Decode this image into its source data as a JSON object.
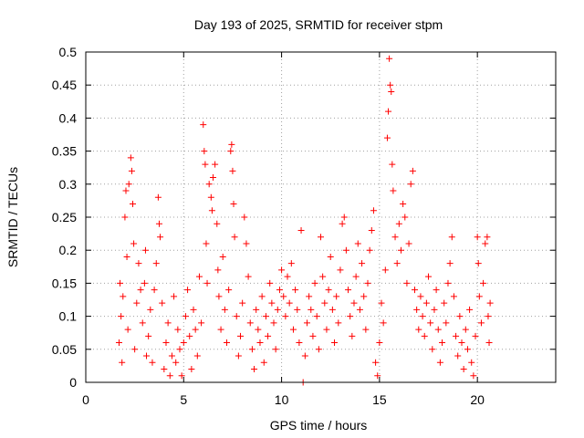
{
  "chart_data": {
    "type": "scatter",
    "title": "Day 193 of 2025, SRMTID for receiver stpm",
    "xlabel": "GPS time / hours",
    "ylabel": "SRMTID / TECUs",
    "xlim": [
      0,
      24
    ],
    "ylim": [
      0,
      0.5
    ],
    "x_ticks": [
      0,
      5,
      10,
      15,
      20
    ],
    "y_ticks": [
      0,
      0.05,
      0.1,
      0.15,
      0.2,
      0.25,
      0.3,
      0.35,
      0.4,
      0.45,
      0.5
    ],
    "x_tick_labels": [
      "0",
      "5",
      "10",
      "15",
      "20"
    ],
    "y_tick_labels": [
      "0",
      "0.05",
      "0.1",
      "0.15",
      "0.2",
      "0.25",
      "0.3",
      "0.35",
      "0.4",
      "0.45",
      "0.5"
    ],
    "grid": true,
    "marker": "plus",
    "series_color": "#ff0000",
    "series": [
      {
        "name": "SRMTID",
        "points": [
          [
            1.7,
            0.06
          ],
          [
            1.75,
            0.15
          ],
          [
            1.8,
            0.1
          ],
          [
            1.85,
            0.03
          ],
          [
            1.9,
            0.13
          ],
          [
            2.0,
            0.25
          ],
          [
            2.05,
            0.29
          ],
          [
            2.1,
            0.19
          ],
          [
            2.15,
            0.08
          ],
          [
            2.2,
            0.3
          ],
          [
            2.3,
            0.34
          ],
          [
            2.35,
            0.32
          ],
          [
            2.4,
            0.27
          ],
          [
            2.45,
            0.21
          ],
          [
            2.5,
            0.05
          ],
          [
            2.6,
            0.12
          ],
          [
            2.7,
            0.18
          ],
          [
            2.8,
            0.14
          ],
          [
            2.9,
            0.09
          ],
          [
            3.0,
            0.15
          ],
          [
            3.05,
            0.2
          ],
          [
            3.1,
            0.04
          ],
          [
            3.2,
            0.07
          ],
          [
            3.3,
            0.11
          ],
          [
            3.4,
            0.03
          ],
          [
            3.5,
            0.14
          ],
          [
            3.6,
            0.18
          ],
          [
            3.7,
            0.28
          ],
          [
            3.75,
            0.24
          ],
          [
            3.8,
            0.22
          ],
          [
            3.9,
            0.12
          ],
          [
            4.0,
            0.02
          ],
          [
            4.1,
            0.06
          ],
          [
            4.2,
            0.09
          ],
          [
            4.3,
            0.01
          ],
          [
            4.4,
            0.04
          ],
          [
            4.5,
            0.13
          ],
          [
            4.6,
            0.03
          ],
          [
            4.7,
            0.08
          ],
          [
            4.8,
            0.05
          ],
          [
            4.9,
            0.01
          ],
          [
            5.0,
            0.06
          ],
          [
            5.1,
            0.1
          ],
          [
            5.2,
            0.14
          ],
          [
            5.3,
            0.07
          ],
          [
            5.4,
            0.02
          ],
          [
            5.5,
            0.11
          ],
          [
            5.6,
            0.08
          ],
          [
            5.7,
            0.04
          ],
          [
            5.8,
            0.16
          ],
          [
            5.9,
            0.09
          ],
          [
            6.0,
            0.39
          ],
          [
            6.05,
            0.35
          ],
          [
            6.1,
            0.33
          ],
          [
            6.15,
            0.21
          ],
          [
            6.2,
            0.15
          ],
          [
            6.3,
            0.3
          ],
          [
            6.4,
            0.28
          ],
          [
            6.45,
            0.26
          ],
          [
            6.5,
            0.31
          ],
          [
            6.6,
            0.33
          ],
          [
            6.7,
            0.24
          ],
          [
            6.75,
            0.17
          ],
          [
            6.8,
            0.13
          ],
          [
            6.9,
            0.08
          ],
          [
            7.0,
            0.19
          ],
          [
            7.1,
            0.11
          ],
          [
            7.2,
            0.06
          ],
          [
            7.3,
            0.14
          ],
          [
            7.4,
            0.35
          ],
          [
            7.45,
            0.36
          ],
          [
            7.5,
            0.32
          ],
          [
            7.55,
            0.27
          ],
          [
            7.6,
            0.22
          ],
          [
            7.7,
            0.1
          ],
          [
            7.8,
            0.04
          ],
          [
            7.9,
            0.07
          ],
          [
            8.0,
            0.12
          ],
          [
            8.1,
            0.25
          ],
          [
            8.2,
            0.21
          ],
          [
            8.3,
            0.16
          ],
          [
            8.4,
            0.09
          ],
          [
            8.5,
            0.05
          ],
          [
            8.6,
            0.02
          ],
          [
            8.7,
            0.11
          ],
          [
            8.8,
            0.08
          ],
          [
            8.9,
            0.06
          ],
          [
            9.0,
            0.13
          ],
          [
            9.1,
            0.03
          ],
          [
            9.2,
            0.1
          ],
          [
            9.3,
            0.07
          ],
          [
            9.4,
            0.15
          ],
          [
            9.5,
            0.12
          ],
          [
            9.6,
            0.09
          ],
          [
            9.7,
            0.05
          ],
          [
            9.8,
            0.11
          ],
          [
            9.9,
            0.14
          ],
          [
            10.0,
            0.17
          ],
          [
            10.1,
            0.13
          ],
          [
            10.2,
            0.1
          ],
          [
            10.3,
            0.16
          ],
          [
            10.4,
            0.12
          ],
          [
            10.5,
            0.18
          ],
          [
            10.6,
            0.08
          ],
          [
            10.7,
            0.14
          ],
          [
            10.8,
            0.11
          ],
          [
            10.9,
            0.06
          ],
          [
            11.0,
            0.23
          ],
          [
            11.1,
            0.0
          ],
          [
            11.2,
            0.04
          ],
          [
            11.3,
            0.09
          ],
          [
            11.4,
            0.13
          ],
          [
            11.5,
            0.11
          ],
          [
            11.6,
            0.07
          ],
          [
            11.7,
            0.15
          ],
          [
            11.8,
            0.1
          ],
          [
            11.9,
            0.05
          ],
          [
            12.0,
            0.22
          ],
          [
            12.1,
            0.16
          ],
          [
            12.2,
            0.12
          ],
          [
            12.3,
            0.08
          ],
          [
            12.4,
            0.14
          ],
          [
            12.5,
            0.19
          ],
          [
            12.6,
            0.11
          ],
          [
            12.7,
            0.06
          ],
          [
            12.8,
            0.13
          ],
          [
            12.9,
            0.09
          ],
          [
            13.0,
            0.17
          ],
          [
            13.1,
            0.24
          ],
          [
            13.2,
            0.25
          ],
          [
            13.3,
            0.2
          ],
          [
            13.4,
            0.14
          ],
          [
            13.5,
            0.1
          ],
          [
            13.6,
            0.07
          ],
          [
            13.7,
            0.12
          ],
          [
            13.8,
            0.16
          ],
          [
            13.9,
            0.21
          ],
          [
            14.0,
            0.11
          ],
          [
            14.1,
            0.18
          ],
          [
            14.2,
            0.13
          ],
          [
            14.3,
            0.08
          ],
          [
            14.4,
            0.15
          ],
          [
            14.5,
            0.2
          ],
          [
            14.6,
            0.23
          ],
          [
            14.7,
            0.26
          ],
          [
            14.8,
            0.03
          ],
          [
            14.9,
            0.01
          ],
          [
            15.0,
            0.06
          ],
          [
            15.1,
            0.12
          ],
          [
            15.2,
            0.09
          ],
          [
            15.3,
            0.17
          ],
          [
            15.4,
            0.37
          ],
          [
            15.45,
            0.41
          ],
          [
            15.5,
            0.49
          ],
          [
            15.55,
            0.45
          ],
          [
            15.6,
            0.44
          ],
          [
            15.65,
            0.33
          ],
          [
            15.7,
            0.29
          ],
          [
            15.8,
            0.22
          ],
          [
            15.9,
            0.18
          ],
          [
            16.0,
            0.24
          ],
          [
            16.1,
            0.2
          ],
          [
            16.2,
            0.27
          ],
          [
            16.3,
            0.25
          ],
          [
            16.4,
            0.15
          ],
          [
            16.5,
            0.21
          ],
          [
            16.6,
            0.3
          ],
          [
            16.7,
            0.32
          ],
          [
            16.8,
            0.14
          ],
          [
            16.9,
            0.11
          ],
          [
            17.0,
            0.08
          ],
          [
            17.1,
            0.13
          ],
          [
            17.2,
            0.1
          ],
          [
            17.3,
            0.07
          ],
          [
            17.4,
            0.12
          ],
          [
            17.5,
            0.16
          ],
          [
            17.6,
            0.09
          ],
          [
            17.7,
            0.05
          ],
          [
            17.8,
            0.11
          ],
          [
            17.9,
            0.14
          ],
          [
            18.0,
            0.08
          ],
          [
            18.1,
            0.03
          ],
          [
            18.2,
            0.06
          ],
          [
            18.3,
            0.12
          ],
          [
            18.4,
            0.09
          ],
          [
            18.5,
            0.15
          ],
          [
            18.6,
            0.18
          ],
          [
            18.7,
            0.22
          ],
          [
            18.8,
            0.13
          ],
          [
            18.9,
            0.07
          ],
          [
            19.0,
            0.04
          ],
          [
            19.1,
            0.1
          ],
          [
            19.2,
            0.06
          ],
          [
            19.3,
            0.02
          ],
          [
            19.4,
            0.08
          ],
          [
            19.5,
            0.05
          ],
          [
            19.6,
            0.11
          ],
          [
            19.7,
            0.03
          ],
          [
            19.8,
            0.01
          ],
          [
            19.9,
            0.07
          ],
          [
            20.0,
            0.22
          ],
          [
            20.05,
            0.18
          ],
          [
            20.1,
            0.13
          ],
          [
            20.2,
            0.09
          ],
          [
            20.3,
            0.15
          ],
          [
            20.4,
            0.21
          ],
          [
            20.5,
            0.22
          ],
          [
            20.55,
            0.1
          ],
          [
            20.6,
            0.06
          ],
          [
            20.65,
            0.12
          ]
        ]
      }
    ]
  }
}
